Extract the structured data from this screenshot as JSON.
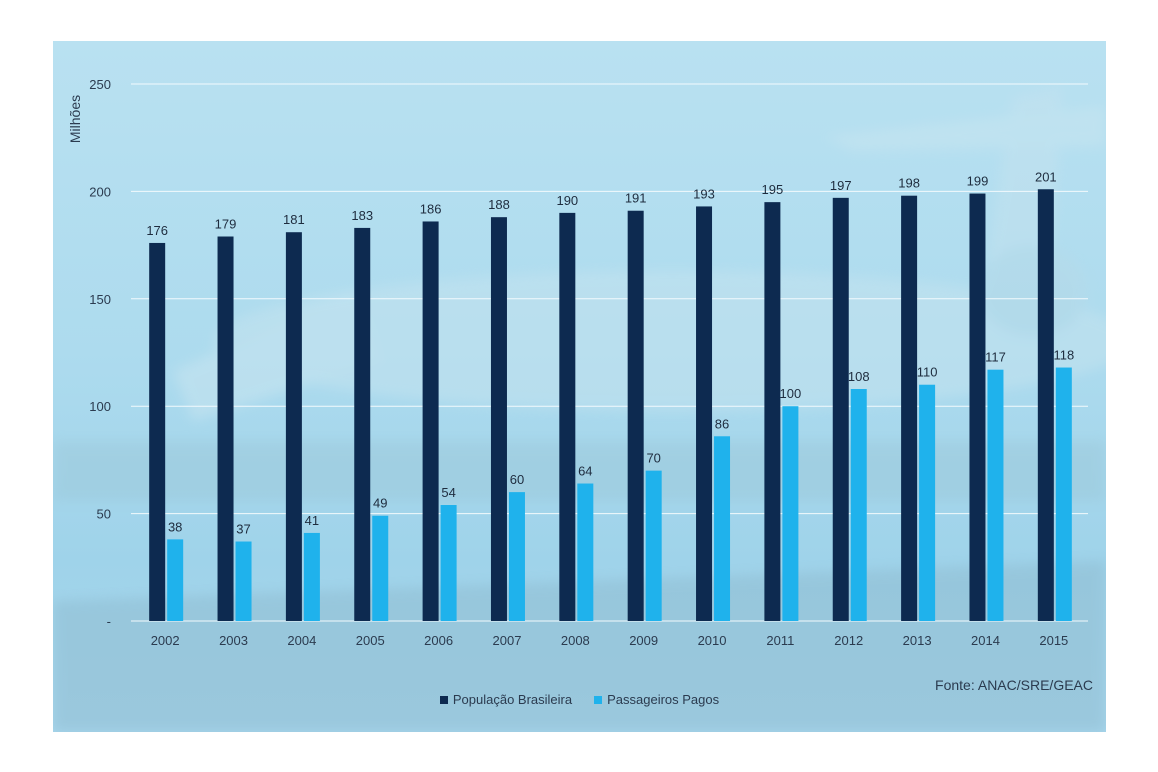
{
  "chart_data": {
    "type": "bar",
    "ylabel": "Milhões",
    "ylim": [
      0,
      250
    ],
    "yticks": [
      "-",
      "50",
      "100",
      "150",
      "200",
      "250"
    ],
    "grid": true,
    "legend_position": "bottom",
    "categories": [
      "2002",
      "2003",
      "2004",
      "2005",
      "2006",
      "2007",
      "2008",
      "2009",
      "2010",
      "2011",
      "2012",
      "2013",
      "2014",
      "2015"
    ],
    "series": [
      {
        "name": "População Brasileira",
        "color": "#0d2a50",
        "values": [
          176,
          179,
          181,
          183,
          186,
          188,
          190,
          191,
          193,
          195,
          197,
          198,
          199,
          201
        ]
      },
      {
        "name": "Passageiros Pagos",
        "color": "#1fb2ec",
        "values": [
          38,
          37,
          41,
          49,
          54,
          60,
          64,
          70,
          86,
          100,
          108,
          110,
          117,
          118
        ]
      }
    ],
    "source": "Fonte: ANAC/SRE/GEAC"
  }
}
